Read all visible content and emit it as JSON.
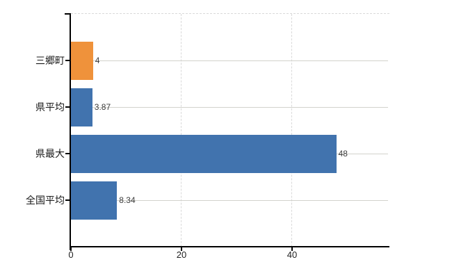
{
  "chart_data": {
    "type": "bar",
    "orientation": "horizontal",
    "title": "",
    "xlabel": "",
    "ylabel": "",
    "categories": [
      "三郷町",
      "県平均",
      "県最大",
      "全国平均"
    ],
    "values": [
      4,
      3.87,
      48,
      8.34
    ],
    "value_labels": [
      "4",
      "3.87",
      "48",
      "8.34"
    ],
    "bar_colors": [
      "#EF923B",
      "#4173AE",
      "#4173AE",
      "#4173AE"
    ],
    "x_axis": {
      "min": 0,
      "max": 57.6,
      "ticks": [
        0,
        20,
        40
      ],
      "tick_labels": [
        "0",
        "20",
        "40"
      ]
    },
    "legend": "none",
    "grid": {
      "category_lines": "solid",
      "vertical_tick_lines": "dashed",
      "plot_top_border": "dashed"
    },
    "colors": {
      "background": "#ffffff",
      "axis": "#000000",
      "gridline": "#d2d2cc",
      "dashed_line": "#d9d9d9",
      "category_label": "#1a1a1a",
      "value_label": "#3c3c3c",
      "tick_label": "#222222"
    }
  }
}
